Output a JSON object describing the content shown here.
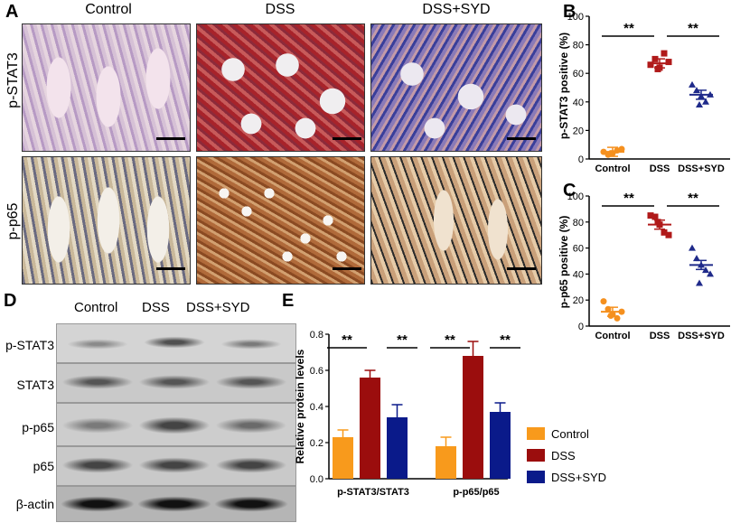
{
  "panels": {
    "A": "A",
    "B": "B",
    "C": "C",
    "D": "D",
    "E": "E"
  },
  "ihc": {
    "columns": [
      "Control",
      "DSS",
      "DSS+SYD"
    ],
    "rows": [
      "p-STAT3",
      "p-p65"
    ]
  },
  "sig": "**",
  "scatter_b": {
    "ylabel": "p-STAT3  positive (%)",
    "categories": [
      "Control",
      "DSS",
      "DSS+SYD"
    ],
    "ticks": [
      "0",
      "20",
      "40",
      "60",
      "80",
      "100"
    ],
    "colors": [
      "#f5901e",
      "#b01a1a",
      "#1f2a8a"
    ]
  },
  "scatter_c": {
    "ylabel": "p-p65 positive (%)",
    "categories": [
      "Control",
      "DSS",
      "DSS+SYD"
    ],
    "ticks": [
      "0",
      "20",
      "40",
      "60",
      "80",
      "100"
    ],
    "colors": [
      "#f5901e",
      "#b01a1a",
      "#1f2a8a"
    ]
  },
  "western": {
    "columns": [
      "Control",
      "DSS",
      "DSS+SYD"
    ],
    "rows": [
      "p-STAT3",
      "STAT3",
      "p-p65",
      "p65",
      "β-actin"
    ]
  },
  "bar_e": {
    "ylabel": "Relative protein levels",
    "groups": [
      "p-STAT3/STAT3",
      "p-p65/p65"
    ],
    "ticks": [
      "0.0",
      "0.2",
      "0.4",
      "0.6",
      "0.8"
    ],
    "legend": [
      "Control",
      "DSS",
      "DSS+SYD"
    ],
    "colors": [
      "#f89a1c",
      "#9b0d0d",
      "#0a1a8a"
    ]
  },
  "chart_data": [
    {
      "type": "scatter",
      "ylabel": "p-STAT3  positive (%)",
      "categories": [
        "Control",
        "DSS",
        "DSS+SYD"
      ],
      "ylim": [
        0,
        100
      ],
      "series": [
        {
          "values": [
            5,
            3,
            4,
            6,
            7,
            4
          ],
          "mean": 5
        },
        {
          "values": [
            66,
            70,
            64,
            74,
            68,
            63
          ],
          "mean": 67
        },
        {
          "values": [
            52,
            48,
            44,
            40,
            45,
            38
          ],
          "mean": 45
        }
      ],
      "significance": [
        "Control vs DSS **",
        "DSS vs DSS+SYD **"
      ]
    },
    {
      "type": "scatter",
      "ylabel": "p-p65 positive (%)",
      "categories": [
        "Control",
        "DSS",
        "DSS+SYD"
      ],
      "ylim": [
        0,
        100
      ],
      "series": [
        {
          "values": [
            19,
            13,
            9,
            6,
            11,
            8
          ],
          "mean": 11
        },
        {
          "values": [
            85,
            84,
            78,
            72,
            70,
            80
          ],
          "mean": 78
        },
        {
          "values": [
            60,
            52,
            47,
            43,
            40,
            33
          ],
          "mean": 47
        }
      ],
      "significance": [
        "Control vs DSS **",
        "DSS vs DSS+SYD **"
      ]
    },
    {
      "type": "bar",
      "ylabel": "Relative protein levels",
      "categories": [
        "p-STAT3/STAT3",
        "p-p65/p65"
      ],
      "ylim": [
        0,
        0.8
      ],
      "series": [
        {
          "name": "Control",
          "values": [
            0.23,
            0.18
          ],
          "errors": [
            0.04,
            0.05
          ]
        },
        {
          "name": "DSS",
          "values": [
            0.56,
            0.68
          ],
          "errors": [
            0.04,
            0.08
          ]
        },
        {
          "name": "DSS+SYD",
          "values": [
            0.34,
            0.37
          ],
          "errors": [
            0.07,
            0.05
          ]
        }
      ],
      "legend": "right"
    }
  ]
}
